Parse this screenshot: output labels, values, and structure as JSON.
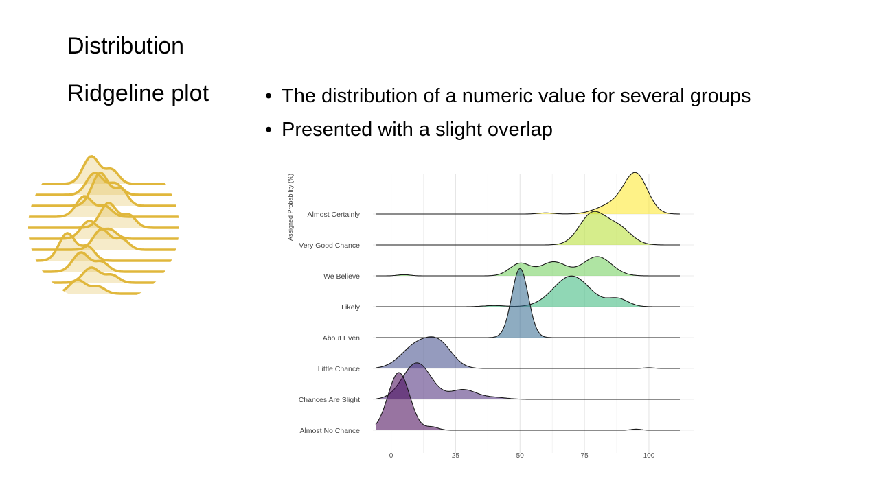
{
  "slide": {
    "title": "Distribution",
    "subtitle": "Ridgeline plot",
    "bullets": [
      "The distribution of a numeric value for several groups",
      "Presented with a slight overlap"
    ]
  },
  "logo": {
    "icon": "ridgeline-circle-icon",
    "color": "#e0b73c"
  },
  "chart_data": {
    "type": "ridgeline",
    "ylabel": "Assigned Probability (%)",
    "xlabel": "",
    "xticks": [
      0,
      25,
      50,
      75,
      100
    ],
    "xlim": [
      -6,
      112
    ],
    "grid": true,
    "categories": [
      "Almost Certainly",
      "Very Good Chance",
      "We Believe",
      "Likely",
      "About Even",
      "Little Chance",
      "Chances Are Slight",
      "Almost No Chance"
    ],
    "series": [
      {
        "category": "Almost Certainly",
        "color": "#fde725",
        "components": [
          {
            "mu": 95,
            "sd": 4.5,
            "h": 1.0
          },
          {
            "mu": 86,
            "sd": 6,
            "h": 0.25
          },
          {
            "mu": 60,
            "sd": 3,
            "h": 0.03
          }
        ]
      },
      {
        "category": "Very Good Chance",
        "color": "#b5de2b",
        "components": [
          {
            "mu": 78,
            "sd": 5,
            "h": 0.8
          },
          {
            "mu": 88,
            "sd": 5,
            "h": 0.45
          }
        ]
      },
      {
        "category": "We Believe",
        "color": "#6ece58",
        "components": [
          {
            "mu": 50,
            "sd": 4,
            "h": 0.32
          },
          {
            "mu": 63,
            "sd": 5,
            "h": 0.36
          },
          {
            "mu": 80,
            "sd": 5.5,
            "h": 0.5
          },
          {
            "mu": 5,
            "sd": 2.5,
            "h": 0.03
          }
        ]
      },
      {
        "category": "Likely",
        "color": "#35b779",
        "components": [
          {
            "mu": 70,
            "sd": 7,
            "h": 0.8
          },
          {
            "mu": 88,
            "sd": 4,
            "h": 0.2
          },
          {
            "mu": 40,
            "sd": 4,
            "h": 0.03
          }
        ]
      },
      {
        "category": "About Even",
        "color": "#31688e",
        "components": [
          {
            "mu": 50,
            "sd": 3.2,
            "h": 1.8
          }
        ]
      },
      {
        "category": "Little Chance",
        "color": "#3e4989",
        "components": [
          {
            "mu": 10,
            "sd": 6,
            "h": 0.6
          },
          {
            "mu": 19,
            "sd": 5,
            "h": 0.55
          },
          {
            "mu": 100,
            "sd": 2,
            "h": 0.02
          }
        ]
      },
      {
        "category": "Chances Are Slight",
        "color": "#482878",
        "components": [
          {
            "mu": 10,
            "sd": 5.5,
            "h": 0.95
          },
          {
            "mu": 28,
            "sd": 5,
            "h": 0.25
          },
          {
            "mu": 40,
            "sd": 5,
            "h": 0.05
          }
        ]
      },
      {
        "category": "Almost No Chance",
        "color": "#440154",
        "components": [
          {
            "mu": 3,
            "sd": 4.2,
            "h": 1.5
          },
          {
            "mu": 16,
            "sd": 2.5,
            "h": 0.08
          },
          {
            "mu": 95,
            "sd": 2,
            "h": 0.03
          }
        ]
      }
    ]
  }
}
